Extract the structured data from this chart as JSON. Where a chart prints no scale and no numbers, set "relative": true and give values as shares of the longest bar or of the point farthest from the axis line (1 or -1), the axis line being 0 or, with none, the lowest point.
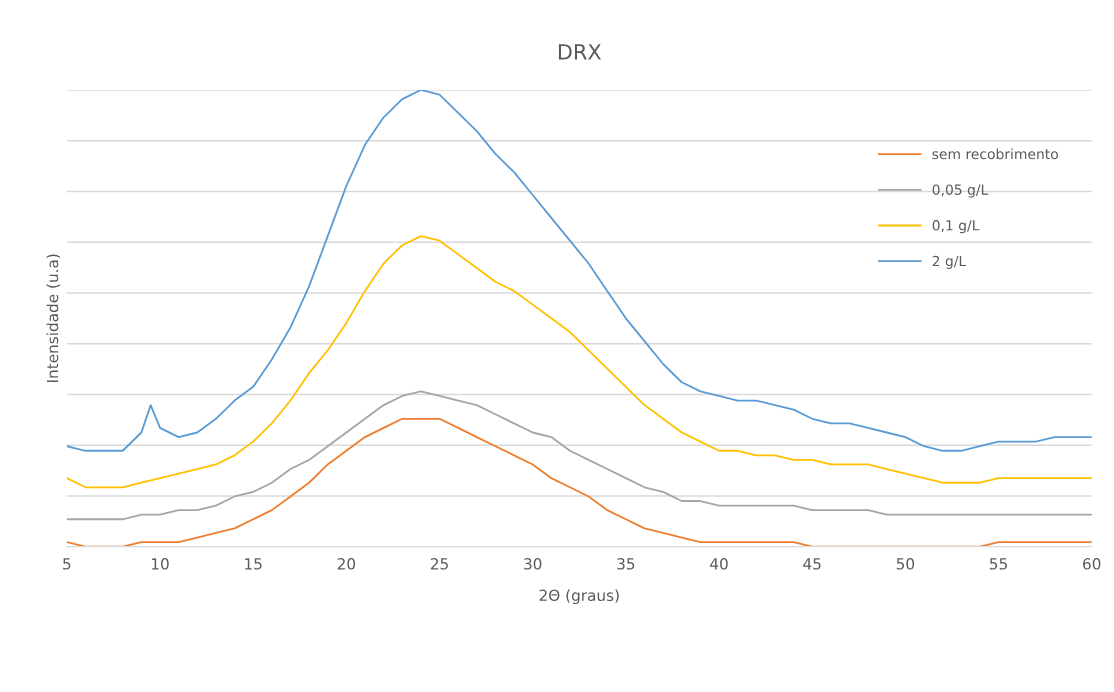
{
  "chart_data": {
    "type": "line",
    "title": "DRX",
    "xlabel": "2Θ (graus)",
    "ylabel": "Intensidade (u.a)",
    "relative": true,
    "xlim": [
      5,
      60
    ],
    "xticks": [
      5,
      10,
      15,
      20,
      25,
      30,
      35,
      40,
      45,
      50,
      55,
      60
    ],
    "grid": "y",
    "legend": "right",
    "marker": "none",
    "line_style": "solid",
    "x": [
      5,
      6,
      7,
      8,
      9,
      10,
      11,
      12,
      13,
      14,
      15,
      16,
      17,
      18,
      19,
      20,
      21,
      22,
      23,
      24,
      25,
      26,
      27,
      28,
      29,
      30,
      31,
      32,
      33,
      34,
      35,
      36,
      37,
      38,
      39,
      40,
      41,
      42,
      43,
      44,
      45,
      46,
      47,
      48,
      49,
      50,
      51,
      52,
      53,
      54,
      55,
      56,
      57,
      58,
      59,
      60
    ],
    "series": [
      {
        "name": "sem recobrimento",
        "color": "#ed7d31",
        "values": [
          0.01,
          0.0,
          0.0,
          0.0,
          0.01,
          0.01,
          0.01,
          0.02,
          0.03,
          0.04,
          0.06,
          0.08,
          0.11,
          0.14,
          0.18,
          0.21,
          0.24,
          0.26,
          0.28,
          0.28,
          0.28,
          0.26,
          0.24,
          0.22,
          0.2,
          0.18,
          0.15,
          0.13,
          0.11,
          0.08,
          0.06,
          0.04,
          0.03,
          0.02,
          0.01,
          0.01,
          0.01,
          0.01,
          0.01,
          0.01,
          0.0,
          0.0,
          0.0,
          0.0,
          0.0,
          0.0,
          0.0,
          0.0,
          0.0,
          0.0,
          0.01,
          0.01,
          0.01,
          0.01,
          0.01,
          0.01
        ]
      },
      {
        "name": "0,05 g/L",
        "color": "#a5a5a5",
        "values": [
          0.06,
          0.06,
          0.06,
          0.06,
          0.07,
          0.07,
          0.08,
          0.08,
          0.09,
          0.11,
          0.12,
          0.14,
          0.17,
          0.19,
          0.22,
          0.25,
          0.28,
          0.31,
          0.33,
          0.34,
          0.33,
          0.32,
          0.31,
          0.29,
          0.27,
          0.25,
          0.24,
          0.21,
          0.19,
          0.17,
          0.15,
          0.13,
          0.12,
          0.1,
          0.1,
          0.09,
          0.09,
          0.09,
          0.09,
          0.09,
          0.08,
          0.08,
          0.08,
          0.08,
          0.07,
          0.07,
          0.07,
          0.07,
          0.07,
          0.07,
          0.07,
          0.07,
          0.07,
          0.07,
          0.07,
          0.07
        ]
      },
      {
        "name": "0,1 g/L",
        "color": "#ffc000",
        "values": [
          0.15,
          0.13,
          0.13,
          0.13,
          0.14,
          0.15,
          0.16,
          0.17,
          0.18,
          0.2,
          0.23,
          0.27,
          0.32,
          0.38,
          0.43,
          0.49,
          0.56,
          0.62,
          0.66,
          0.68,
          0.67,
          0.64,
          0.61,
          0.58,
          0.56,
          0.53,
          0.5,
          0.47,
          0.43,
          0.39,
          0.35,
          0.31,
          0.28,
          0.25,
          0.23,
          0.21,
          0.21,
          0.2,
          0.2,
          0.19,
          0.19,
          0.18,
          0.18,
          0.18,
          0.17,
          0.16,
          0.15,
          0.14,
          0.14,
          0.14,
          0.15,
          0.15,
          0.15,
          0.15,
          0.15,
          0.15
        ]
      },
      {
        "name": "2 g/L",
        "color": "#5b9bd5",
        "x": [
          5,
          6,
          7,
          8,
          9,
          9.5,
          10,
          11,
          12,
          13,
          14,
          15,
          16,
          17,
          18,
          19,
          20,
          21,
          22,
          23,
          24,
          25,
          26,
          27,
          28,
          29,
          30,
          31,
          32,
          33,
          34,
          35,
          36,
          37,
          38,
          39,
          40,
          41,
          42,
          43,
          44,
          45,
          46,
          47,
          48,
          49,
          50,
          51,
          52,
          53,
          54,
          55,
          56,
          57,
          58,
          59,
          60
        ],
        "values": [
          0.22,
          0.21,
          0.21,
          0.21,
          0.25,
          0.31,
          0.26,
          0.24,
          0.25,
          0.28,
          0.32,
          0.35,
          0.41,
          0.48,
          0.57,
          0.68,
          0.79,
          0.88,
          0.94,
          0.98,
          1.0,
          0.99,
          0.95,
          0.91,
          0.86,
          0.82,
          0.77,
          0.72,
          0.67,
          0.62,
          0.56,
          0.5,
          0.45,
          0.4,
          0.36,
          0.34,
          0.33,
          0.32,
          0.32,
          0.31,
          0.3,
          0.28,
          0.27,
          0.27,
          0.26,
          0.25,
          0.24,
          0.22,
          0.21,
          0.21,
          0.22,
          0.23,
          0.23,
          0.23,
          0.24,
          0.24,
          0.24
        ]
      }
    ]
  }
}
